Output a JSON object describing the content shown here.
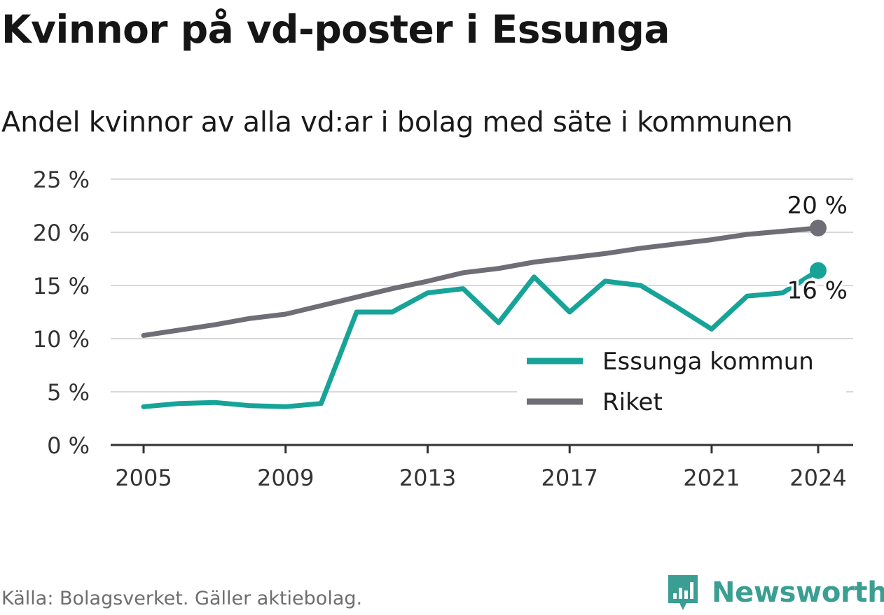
{
  "header": {
    "title": "Kvinnor på vd-poster i Essunga",
    "subtitle": "Andel kvinnor av alla vd:ar i bolag med säte i kommunen"
  },
  "footer": {
    "source": "Källa: Bolagsverket. Gäller aktiebolag.",
    "brand_name": "Newsworthy",
    "brand_icon": "bar-chart-logo-icon"
  },
  "colors": {
    "essunga": "#17a398",
    "riket": "#6f6e76",
    "grid": "#d9d9d9",
    "axis": "#333333",
    "brand": "#3a9e93"
  },
  "chart_data": {
    "type": "line",
    "x": [
      2005,
      2006,
      2007,
      2008,
      2009,
      2010,
      2011,
      2012,
      2013,
      2014,
      2015,
      2016,
      2017,
      2018,
      2019,
      2020,
      2021,
      2022,
      2023,
      2024
    ],
    "x_ticks": [
      2005,
      2009,
      2013,
      2017,
      2021,
      2024
    ],
    "x_tick_labels": [
      "2005",
      "2009",
      "2013",
      "2017",
      "2021",
      "2024"
    ],
    "y_ticks": [
      0,
      5,
      10,
      15,
      20,
      25
    ],
    "y_tick_labels": [
      "0 %",
      "5 %",
      "10 %",
      "15 %",
      "20 %",
      "25 %"
    ],
    "ylim": [
      0,
      25
    ],
    "grid": true,
    "legend_position": "lower-right",
    "series": [
      {
        "name": "Essunga kommun",
        "values": [
          3.6,
          3.9,
          4.0,
          3.7,
          3.6,
          3.9,
          12.5,
          12.5,
          14.3,
          14.7,
          11.5,
          15.8,
          12.5,
          15.4,
          15.0,
          13.0,
          10.9,
          14.0,
          14.3,
          16.4
        ],
        "end_label": "16 %"
      },
      {
        "name": "Riket",
        "values": [
          10.3,
          10.8,
          11.3,
          11.9,
          12.3,
          13.1,
          13.9,
          14.7,
          15.4,
          16.2,
          16.6,
          17.2,
          17.6,
          18.0,
          18.5,
          18.9,
          19.3,
          19.8,
          20.1,
          20.4
        ],
        "end_label": "20 %"
      }
    ]
  }
}
